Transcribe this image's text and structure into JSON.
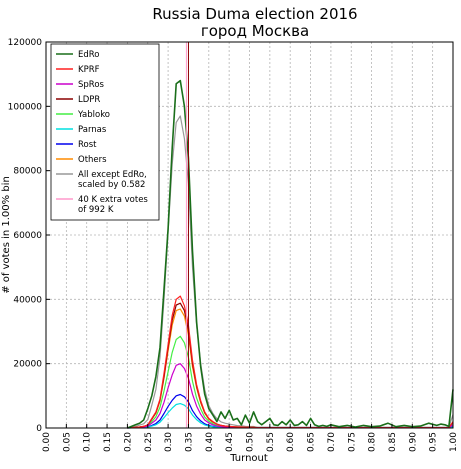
{
  "chart_data": {
    "type": "line",
    "title": "Russia Duma election 2016",
    "subtitle": "город Москва",
    "xlabel": "Turnout",
    "ylabel": "# of votes in 1.00% bin",
    "xlim": [
      0,
      1
    ],
    "ylim": [
      0,
      120000
    ],
    "grid": true,
    "legend_position": "top-left",
    "x_ticks": [
      "0.00",
      "0.05",
      "0.10",
      "0.15",
      "0.20",
      "0.25",
      "0.30",
      "0.35",
      "0.40",
      "0.45",
      "0.50",
      "0.55",
      "0.60",
      "0.65",
      "0.70",
      "0.75",
      "0.80",
      "0.85",
      "0.90",
      "0.95",
      "1.00"
    ],
    "y_ticks": [
      "0",
      "20000",
      "40000",
      "60000",
      "80000",
      "100000",
      "120000"
    ],
    "x": [
      0.2,
      0.21,
      0.22,
      0.23,
      0.24,
      0.25,
      0.26,
      0.27,
      0.28,
      0.29,
      0.3,
      0.31,
      0.32,
      0.33,
      0.34,
      0.35,
      0.36,
      0.37,
      0.38,
      0.39,
      0.4,
      0.41,
      0.42,
      0.43,
      0.44,
      0.45,
      0.46,
      0.47,
      0.48,
      0.49,
      0.5,
      0.51,
      0.52,
      0.53,
      0.54,
      0.55,
      0.56,
      0.57,
      0.58,
      0.59,
      0.6,
      0.61,
      0.62,
      0.63,
      0.64,
      0.65,
      0.66,
      0.67,
      0.68,
      0.69,
      0.7,
      0.72,
      0.74,
      0.76,
      0.78,
      0.8,
      0.82,
      0.84,
      0.86,
      0.88,
      0.9,
      0.92,
      0.94,
      0.96,
      0.97,
      0.98,
      0.99,
      1.0
    ],
    "series": [
      {
        "name": "EdRo",
        "color": "#1a6e1a",
        "values": [
          0,
          500,
          1000,
          1500,
          2500,
          6000,
          10000,
          16000,
          25000,
          43000,
          62000,
          87000,
          107000,
          108000,
          100000,
          84000,
          55000,
          33000,
          19000,
          10500,
          6000,
          4000,
          2000,
          5000,
          3000,
          5500,
          2500,
          3000,
          1000,
          4000,
          1500,
          5000,
          2000,
          1000,
          2000,
          3000,
          1000,
          800,
          2000,
          1000,
          2500,
          800,
          1000,
          2000,
          800,
          3000,
          1000,
          500,
          800,
          500,
          1000,
          400,
          800,
          300,
          800,
          400,
          600,
          1500,
          400,
          800,
          400,
          600,
          1500,
          800,
          1200,
          1000,
          500,
          12000
        ]
      },
      {
        "name": "KPRF",
        "color": "#ff2020",
        "values": [
          0,
          100,
          200,
          300,
          500,
          1000,
          3000,
          5000,
          9000,
          17000,
          26000,
          35000,
          40000,
          41000,
          38000,
          32000,
          21000,
          13500,
          8500,
          5000,
          3000,
          2000,
          1200,
          800,
          600,
          500,
          400,
          300,
          300,
          200,
          200,
          200,
          100,
          100,
          100,
          100,
          100,
          100,
          100,
          100,
          100,
          100,
          100,
          100,
          100,
          100,
          100,
          100,
          100,
          100,
          100,
          100,
          100,
          100,
          100,
          100,
          100,
          100,
          100,
          100,
          100,
          100,
          100,
          100,
          100,
          100,
          100,
          2000
        ]
      },
      {
        "name": "SpRos",
        "color": "#cc00cc",
        "values": [
          0,
          50,
          100,
          200,
          300,
          600,
          1500,
          2500,
          4500,
          8000,
          12500,
          16500,
          19500,
          20000,
          18500,
          15500,
          10500,
          6800,
          4300,
          2500,
          1600,
          1000,
          600,
          400,
          300,
          250,
          200,
          150,
          150,
          100,
          100,
          100,
          50,
          50,
          50,
          50,
          50,
          50,
          50,
          50,
          50,
          50,
          50,
          50,
          50,
          50,
          50,
          50,
          50,
          50,
          50,
          50,
          50,
          50,
          50,
          50,
          50,
          50,
          50,
          50,
          50,
          50,
          50,
          50,
          50,
          50,
          50,
          1000
        ]
      },
      {
        "name": "LDPR",
        "color": "#8b0000",
        "values": [
          0,
          100,
          200,
          300,
          500,
          900,
          2800,
          4800,
          8700,
          16000,
          25000,
          33500,
          38200,
          38800,
          36500,
          30500,
          20000,
          13000,
          8200,
          4800,
          2900,
          1900,
          1200,
          800,
          600,
          500,
          400,
          300,
          300,
          200,
          200,
          200,
          100,
          100,
          100,
          100,
          100,
          100,
          100,
          100,
          100,
          100,
          100,
          100,
          100,
          100,
          100,
          100,
          100,
          100,
          100,
          100,
          100,
          100,
          100,
          100,
          100,
          100,
          100,
          100,
          100,
          100,
          100,
          100,
          100,
          100,
          100,
          1800
        ]
      },
      {
        "name": "Yabloko",
        "color": "#44ee44",
        "values": [
          0,
          80,
          150,
          250,
          400,
          800,
          2000,
          3500,
          6500,
          11500,
          17500,
          23500,
          27500,
          28500,
          26500,
          22000,
          14500,
          9300,
          5900,
          3400,
          2100,
          1300,
          800,
          600,
          450,
          350,
          300,
          200,
          200,
          150,
          150,
          150,
          80,
          80,
          80,
          80,
          80,
          80,
          80,
          80,
          80,
          80,
          80,
          80,
          80,
          80,
          80,
          80,
          80,
          80,
          80,
          80,
          80,
          80,
          80,
          80,
          80,
          80,
          80,
          80,
          80,
          80,
          80,
          80,
          80,
          80,
          80,
          1400
        ]
      },
      {
        "name": "Parnas",
        "color": "#00e0e0",
        "values": [
          0,
          20,
          50,
          80,
          120,
          250,
          600,
          1000,
          1800,
          3200,
          4800,
          6200,
          7300,
          7600,
          7100,
          6000,
          4000,
          2600,
          1600,
          950,
          600,
          380,
          250,
          180,
          130,
          100,
          80,
          60,
          60,
          40,
          40,
          40,
          20,
          20,
          20,
          20,
          20,
          20,
          20,
          20,
          20,
          20,
          20,
          20,
          20,
          20,
          20,
          20,
          20,
          20,
          20,
          20,
          20,
          20,
          20,
          20,
          20,
          20,
          20,
          20,
          20,
          20,
          20,
          20,
          20,
          20,
          20,
          300
        ]
      },
      {
        "name": "Rost",
        "color": "#0000ee",
        "values": [
          0,
          30,
          60,
          100,
          150,
          300,
          800,
          1400,
          2500,
          4500,
          6700,
          8600,
          10000,
          10400,
          9700,
          8100,
          5400,
          3500,
          2200,
          1300,
          800,
          500,
          330,
          230,
          170,
          140,
          110,
          80,
          80,
          60,
          60,
          60,
          30,
          30,
          30,
          30,
          30,
          30,
          30,
          30,
          30,
          30,
          30,
          30,
          30,
          30,
          30,
          30,
          30,
          30,
          30,
          30,
          30,
          30,
          30,
          30,
          30,
          30,
          30,
          30,
          30,
          30,
          30,
          30,
          30,
          30,
          30,
          500
        ]
      },
      {
        "name": "Others",
        "color": "#ff8c00",
        "values": [
          0,
          100,
          200,
          300,
          450,
          900,
          2700,
          4600,
          8400,
          15500,
          24000,
          32000,
          36500,
          37000,
          34800,
          29000,
          19000,
          12500,
          7800,
          4600,
          2700,
          1800,
          1150,
          750,
          580,
          480,
          380,
          300,
          280,
          200,
          190,
          190,
          100,
          100,
          100,
          100,
          100,
          100,
          100,
          100,
          100,
          100,
          100,
          100,
          100,
          100,
          100,
          100,
          100,
          100,
          100,
          100,
          100,
          100,
          100,
          100,
          100,
          100,
          100,
          100,
          100,
          100,
          100,
          100,
          100,
          100,
          100,
          1700
        ]
      },
      {
        "name": "All except EdRo,\nscaled by 0.582",
        "color": "#999999",
        "values": [
          0,
          250,
          500,
          900,
          1300,
          2600,
          7100,
          12000,
          22000,
          40000,
          61000,
          82000,
          95000,
          97000,
          90000,
          76000,
          50000,
          32000,
          20000,
          12000,
          7000,
          4500,
          2900,
          1900,
          1500,
          1200,
          1000,
          750,
          700,
          500,
          480,
          480,
          250,
          250,
          250,
          250,
          250,
          250,
          250,
          250,
          250,
          250,
          250,
          250,
          250,
          250,
          250,
          250,
          250,
          250,
          250,
          250,
          250,
          250,
          250,
          250,
          250,
          250,
          250,
          250,
          250,
          250,
          250,
          250,
          250,
          250,
          250,
          4200
        ]
      }
    ],
    "reference_lines": [
      {
        "name": "40 K extra votes\nof 992 K",
        "color": "#ff99cc",
        "x": 0.345
      },
      {
        "name": "",
        "color": "#8b0000",
        "x": 0.35
      }
    ]
  }
}
